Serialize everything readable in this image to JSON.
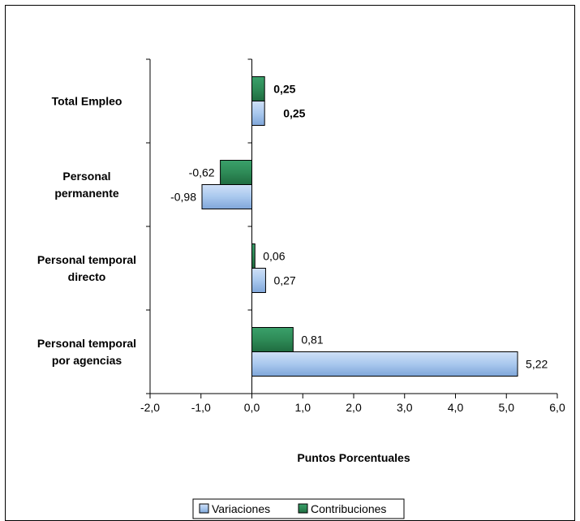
{
  "chart_data": {
    "type": "bar",
    "orientation": "horizontal",
    "categories": [
      "Total Empleo",
      "Personal permanente",
      "Personal temporal directo",
      "Personal temporal por agencias"
    ],
    "category_lines": [
      [
        "Total Empleo"
      ],
      [
        "Personal",
        "permanente"
      ],
      [
        "Personal temporal",
        "directo"
      ],
      [
        "Personal temporal",
        "por agencias"
      ]
    ],
    "series": [
      {
        "name": "Contribuciones",
        "color": "#2e8b57",
        "values": [
          0.25,
          -0.62,
          0.06,
          0.81
        ],
        "labels": [
          "0,25",
          "-0,62",
          "0,06",
          "0,81"
        ]
      },
      {
        "name": "Variaciones",
        "color": "#a9c8ee",
        "values": [
          0.25,
          -0.98,
          0.27,
          5.22
        ],
        "labels": [
          "0,25",
          "-0,98",
          "0,27",
          "5,22"
        ]
      }
    ],
    "xlabel": "Puntos Porcentuales",
    "xlim": [
      -2.0,
      6.0
    ],
    "xticks": [
      -2.0,
      -1.0,
      0.0,
      1.0,
      2.0,
      3.0,
      4.0,
      5.0,
      6.0
    ],
    "xtick_labels": [
      "-2,0",
      "-1,0",
      "0,0",
      "1,0",
      "2,0",
      "3,0",
      "4,0",
      "5,0",
      "6,0"
    ],
    "bold_labels_category": "Total Empleo",
    "grid": false,
    "legend": {
      "position": "bottom",
      "entries": [
        "Variaciones",
        "Contribuciones"
      ]
    }
  }
}
